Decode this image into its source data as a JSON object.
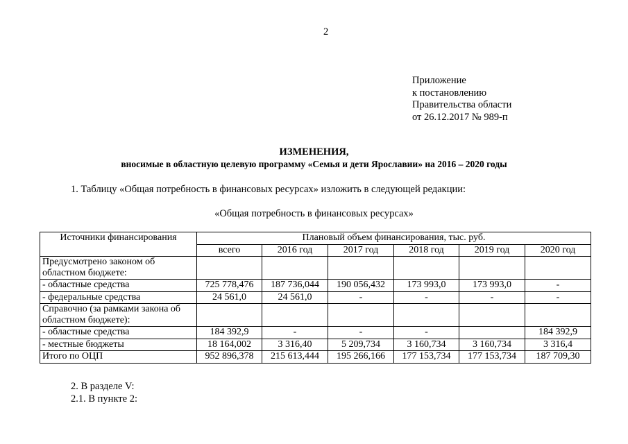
{
  "page_number": "2",
  "appendix": [
    "Приложение",
    "к постановлению",
    "Правительства области",
    "от 26.12.2017 № 989-п"
  ],
  "title": "ИЗМЕНЕНИЯ,",
  "subtitle": "вносимые в областную целевую программу «Семья и дети Ярославии» на 2016 – 2020 годы",
  "para1": "1. Таблицу «Общая потребность в финансовых ресурсах» изложить в следующей редакции:",
  "table_title": "«Общая потребность в финансовых ресурсах»",
  "table": {
    "col_source": "Источники финансирования",
    "col_group": "Плановый объем финансирования, тыс. руб.",
    "columns": [
      "всего",
      "2016 год",
      "2017 год",
      "2018 год",
      "2019 год",
      "2020 год"
    ],
    "rows": [
      {
        "label": "Предусмотрено законом об областном бюджете:",
        "values": [
          "",
          "",
          "",
          "",
          "",
          ""
        ]
      },
      {
        "label": "- областные средства",
        "values": [
          "725 778,476",
          "187 736,044",
          "190 056,432",
          "173 993,0",
          "173 993,0",
          "-"
        ]
      },
      {
        "label": "- федеральные средства",
        "values": [
          "24 561,0",
          "24 561,0",
          "-",
          "-",
          "-",
          "-"
        ]
      },
      {
        "label": "Справочно (за рамками закона об областном бюджете):",
        "values": [
          "",
          "",
          "",
          "",
          "",
          ""
        ]
      },
      {
        "label": "- областные средства",
        "values": [
          "184 392,9",
          "-",
          "-",
          "-",
          "",
          "184 392,9"
        ]
      },
      {
        "label": "- местные бюджеты",
        "values": [
          "18 164,002",
          "3 316,40",
          "5 209,734",
          "3 160,734",
          "3 160,734",
          "3 316,4"
        ]
      },
      {
        "label": "Итого по ОЦП",
        "values": [
          "952 896,378",
          "215 613,444",
          "195 266,166",
          "177 153,734",
          "177 153,734",
          "187 709,30"
        ]
      }
    ]
  },
  "para2": "2. В разделе V:",
  "para3": "2.1. В пункте 2:"
}
